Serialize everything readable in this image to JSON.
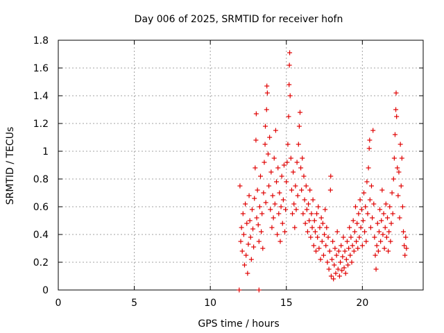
{
  "chart_data": {
    "type": "scatter",
    "title": "Day 006 of 2025, SRMTID for receiver hofn",
    "xlabel": "GPS time / hours",
    "ylabel": "SRMTID / TECUs",
    "xlim": [
      0,
      24
    ],
    "ylim": [
      0,
      1.8
    ],
    "xticks": [
      0,
      5,
      10,
      15,
      20
    ],
    "yticks": [
      0,
      0.2,
      0.4,
      0.6,
      0.8,
      1,
      1.2,
      1.4,
      1.6,
      1.8
    ],
    "xtick_labels": [
      "0",
      "5",
      "10",
      "15",
      "20"
    ],
    "ytick_labels": [
      "0",
      "0.2",
      "0.4",
      "0.6",
      "0.8",
      "1",
      "1.2",
      "1.4",
      "1.6",
      "1.8"
    ],
    "grid": true,
    "marker": "+",
    "color": "#e00000",
    "series": [
      {
        "name": "SRMTID",
        "points": [
          [
            11.9,
            0.0
          ],
          [
            13.2,
            0.0
          ],
          [
            11.95,
            0.75
          ],
          [
            12.0,
            0.35
          ],
          [
            12.05,
            0.45
          ],
          [
            12.1,
            0.28
          ],
          [
            12.15,
            0.55
          ],
          [
            12.2,
            0.4
          ],
          [
            12.25,
            0.18
          ],
          [
            12.3,
            0.62
          ],
          [
            12.35,
            0.25
          ],
          [
            12.4,
            0.48
          ],
          [
            12.45,
            0.12
          ],
          [
            12.5,
            0.33
          ],
          [
            12.55,
            0.68
          ],
          [
            12.6,
            0.5
          ],
          [
            12.65,
            0.38
          ],
          [
            12.7,
            0.22
          ],
          [
            12.75,
            0.58
          ],
          [
            12.8,
            0.44
          ],
          [
            12.85,
            0.31
          ],
          [
            12.9,
            0.66
          ],
          [
            12.95,
            0.88
          ],
          [
            13.0,
            1.08
          ],
          [
            13.02,
            1.27
          ],
          [
            13.05,
            0.52
          ],
          [
            13.1,
            0.72
          ],
          [
            13.15,
            0.47
          ],
          [
            13.2,
            0.35
          ],
          [
            13.25,
            0.6
          ],
          [
            13.3,
            0.82
          ],
          [
            13.35,
            0.42
          ],
          [
            13.4,
            0.55
          ],
          [
            13.45,
            0.3
          ],
          [
            13.5,
            0.7
          ],
          [
            13.55,
            0.92
          ],
          [
            13.6,
            1.05
          ],
          [
            13.62,
            1.18
          ],
          [
            13.65,
            0.63
          ],
          [
            13.7,
            1.3
          ],
          [
            13.72,
            1.47
          ],
          [
            13.75,
            1.42
          ],
          [
            13.8,
            0.98
          ],
          [
            13.85,
            0.75
          ],
          [
            13.9,
            1.1
          ],
          [
            13.95,
            0.58
          ],
          [
            14.0,
            0.85
          ],
          [
            14.05,
            0.45
          ],
          [
            14.1,
            0.68
          ],
          [
            14.15,
            0.52
          ],
          [
            14.2,
            0.95
          ],
          [
            14.25,
            0.62
          ],
          [
            14.3,
            1.15
          ],
          [
            14.35,
            0.78
          ],
          [
            14.4,
            0.4
          ],
          [
            14.45,
            0.88
          ],
          [
            14.5,
            0.55
          ],
          [
            14.55,
            0.7
          ],
          [
            14.6,
            0.35
          ],
          [
            14.65,
            0.6
          ],
          [
            14.7,
            0.82
          ],
          [
            14.75,
            0.48
          ],
          [
            14.8,
            0.65
          ],
          [
            14.85,
            0.9
          ],
          [
            14.9,
            0.42
          ],
          [
            14.95,
            0.58
          ],
          [
            15.0,
            0.78
          ],
          [
            15.05,
            0.92
          ],
          [
            15.1,
            1.05
          ],
          [
            15.15,
            1.25
          ],
          [
            15.18,
            1.48
          ],
          [
            15.2,
            1.62
          ],
          [
            15.22,
            1.71
          ],
          [
            15.25,
            1.4
          ],
          [
            15.3,
            0.95
          ],
          [
            15.35,
            0.72
          ],
          [
            15.4,
            0.55
          ],
          [
            15.45,
            0.85
          ],
          [
            15.5,
            0.62
          ],
          [
            15.55,
            0.45
          ],
          [
            15.6,
            0.75
          ],
          [
            15.65,
            0.58
          ],
          [
            15.7,
            0.92
          ],
          [
            15.75,
            0.68
          ],
          [
            15.8,
            1.05
          ],
          [
            15.85,
            1.18
          ],
          [
            15.9,
            1.28
          ],
          [
            15.95,
            0.88
          ],
          [
            16.0,
            0.72
          ],
          [
            16.05,
            0.95
          ],
          [
            16.1,
            0.55
          ],
          [
            16.15,
            0.82
          ],
          [
            16.2,
            0.65
          ],
          [
            16.25,
            0.48
          ],
          [
            16.3,
            0.75
          ],
          [
            16.35,
            0.58
          ],
          [
            16.4,
            0.42
          ],
          [
            16.45,
            0.62
          ],
          [
            16.5,
            0.5
          ],
          [
            16.55,
            0.72
          ],
          [
            16.6,
            0.38
          ],
          [
            16.65,
            0.55
          ],
          [
            16.7,
            0.45
          ],
          [
            16.75,
            0.65
          ],
          [
            16.8,
            0.32
          ],
          [
            16.85,
            0.5
          ],
          [
            16.9,
            0.42
          ],
          [
            16.95,
            0.28
          ],
          [
            17.0,
            0.55
          ],
          [
            17.05,
            0.38
          ],
          [
            17.1,
            0.6
          ],
          [
            17.15,
            0.3
          ],
          [
            17.2,
            0.45
          ],
          [
            17.25,
            0.22
          ],
          [
            17.3,
            0.52
          ],
          [
            17.35,
            0.35
          ],
          [
            17.4,
            0.48
          ],
          [
            17.45,
            0.25
          ],
          [
            17.5,
            0.4
          ],
          [
            17.55,
            0.58
          ],
          [
            17.6,
            0.32
          ],
          [
            17.65,
            0.45
          ],
          [
            17.7,
            0.2
          ],
          [
            17.75,
            0.38
          ],
          [
            17.8,
            0.15
          ],
          [
            17.85,
            0.28
          ],
          [
            17.9,
            0.72
          ],
          [
            17.92,
            0.82
          ],
          [
            17.95,
            0.1
          ],
          [
            18.0,
            0.22
          ],
          [
            18.05,
            0.35
          ],
          [
            18.1,
            0.08
          ],
          [
            18.15,
            0.18
          ],
          [
            18.2,
            0.3
          ],
          [
            18.25,
            0.12
          ],
          [
            18.3,
            0.25
          ],
          [
            18.35,
            0.42
          ],
          [
            18.4,
            0.15
          ],
          [
            18.45,
            0.28
          ],
          [
            18.5,
            0.1
          ],
          [
            18.55,
            0.2
          ],
          [
            18.6,
            0.32
          ],
          [
            18.65,
            0.14
          ],
          [
            18.7,
            0.24
          ],
          [
            18.75,
            0.38
          ],
          [
            18.8,
            0.16
          ],
          [
            18.85,
            0.28
          ],
          [
            18.9,
            0.12
          ],
          [
            18.95,
            0.22
          ],
          [
            19.0,
            0.35
          ],
          [
            19.05,
            0.18
          ],
          [
            19.1,
            0.3
          ],
          [
            19.15,
            0.45
          ],
          [
            19.2,
            0.25
          ],
          [
            19.25,
            0.38
          ],
          [
            19.3,
            0.2
          ],
          [
            19.35,
            0.32
          ],
          [
            19.4,
            0.5
          ],
          [
            19.45,
            0.28
          ],
          [
            19.5,
            0.42
          ],
          [
            19.55,
            0.6
          ],
          [
            19.6,
            0.35
          ],
          [
            19.65,
            0.48
          ],
          [
            19.7,
            0.3
          ],
          [
            19.75,
            0.55
          ],
          [
            19.8,
            0.38
          ],
          [
            19.85,
            0.65
          ],
          [
            19.9,
            0.45
          ],
          [
            19.95,
            0.58
          ],
          [
            20.0,
            0.32
          ],
          [
            20.05,
            0.5
          ],
          [
            20.1,
            0.7
          ],
          [
            20.15,
            0.42
          ],
          [
            20.2,
            0.6
          ],
          [
            20.25,
            0.35
          ],
          [
            20.3,
            0.78
          ],
          [
            20.35,
            0.55
          ],
          [
            20.4,
            0.88
          ],
          [
            20.45,
            1.02
          ],
          [
            20.48,
            1.08
          ],
          [
            20.5,
            0.65
          ],
          [
            20.55,
            0.45
          ],
          [
            20.6,
            0.75
          ],
          [
            20.65,
            0.52
          ],
          [
            20.7,
            1.15
          ],
          [
            20.75,
            0.62
          ],
          [
            20.8,
            0.38
          ],
          [
            20.85,
            0.25
          ],
          [
            20.9,
            0.15
          ],
          [
            20.95,
            0.32
          ],
          [
            21.0,
            0.48
          ],
          [
            21.05,
            0.28
          ],
          [
            21.1,
            0.42
          ],
          [
            21.15,
            0.58
          ],
          [
            21.2,
            0.35
          ],
          [
            21.25,
            0.5
          ],
          [
            21.3,
            0.72
          ],
          [
            21.35,
            0.4
          ],
          [
            21.4,
            0.55
          ],
          [
            21.45,
            0.3
          ],
          [
            21.5,
            0.45
          ],
          [
            21.55,
            0.62
          ],
          [
            21.6,
            0.38
          ],
          [
            21.65,
            0.52
          ],
          [
            21.7,
            0.28
          ],
          [
            21.75,
            0.42
          ],
          [
            21.8,
            0.6
          ],
          [
            21.85,
            0.35
          ],
          [
            21.9,
            0.48
          ],
          [
            21.95,
            0.7
          ],
          [
            22.0,
            0.55
          ],
          [
            22.05,
            0.8
          ],
          [
            22.1,
            0.95
          ],
          [
            22.15,
            1.12
          ],
          [
            22.2,
            1.3
          ],
          [
            22.22,
            1.42
          ],
          [
            22.25,
            1.25
          ],
          [
            22.3,
            0.88
          ],
          [
            22.35,
            0.68
          ],
          [
            22.4,
            0.85
          ],
          [
            22.45,
            0.52
          ],
          [
            22.5,
            1.05
          ],
          [
            22.55,
            0.75
          ],
          [
            22.6,
            0.95
          ],
          [
            22.65,
            0.6
          ],
          [
            22.7,
            0.42
          ],
          [
            22.75,
            0.32
          ],
          [
            22.8,
            0.25
          ],
          [
            22.85,
            0.38
          ],
          [
            22.9,
            0.3
          ]
        ]
      }
    ]
  }
}
